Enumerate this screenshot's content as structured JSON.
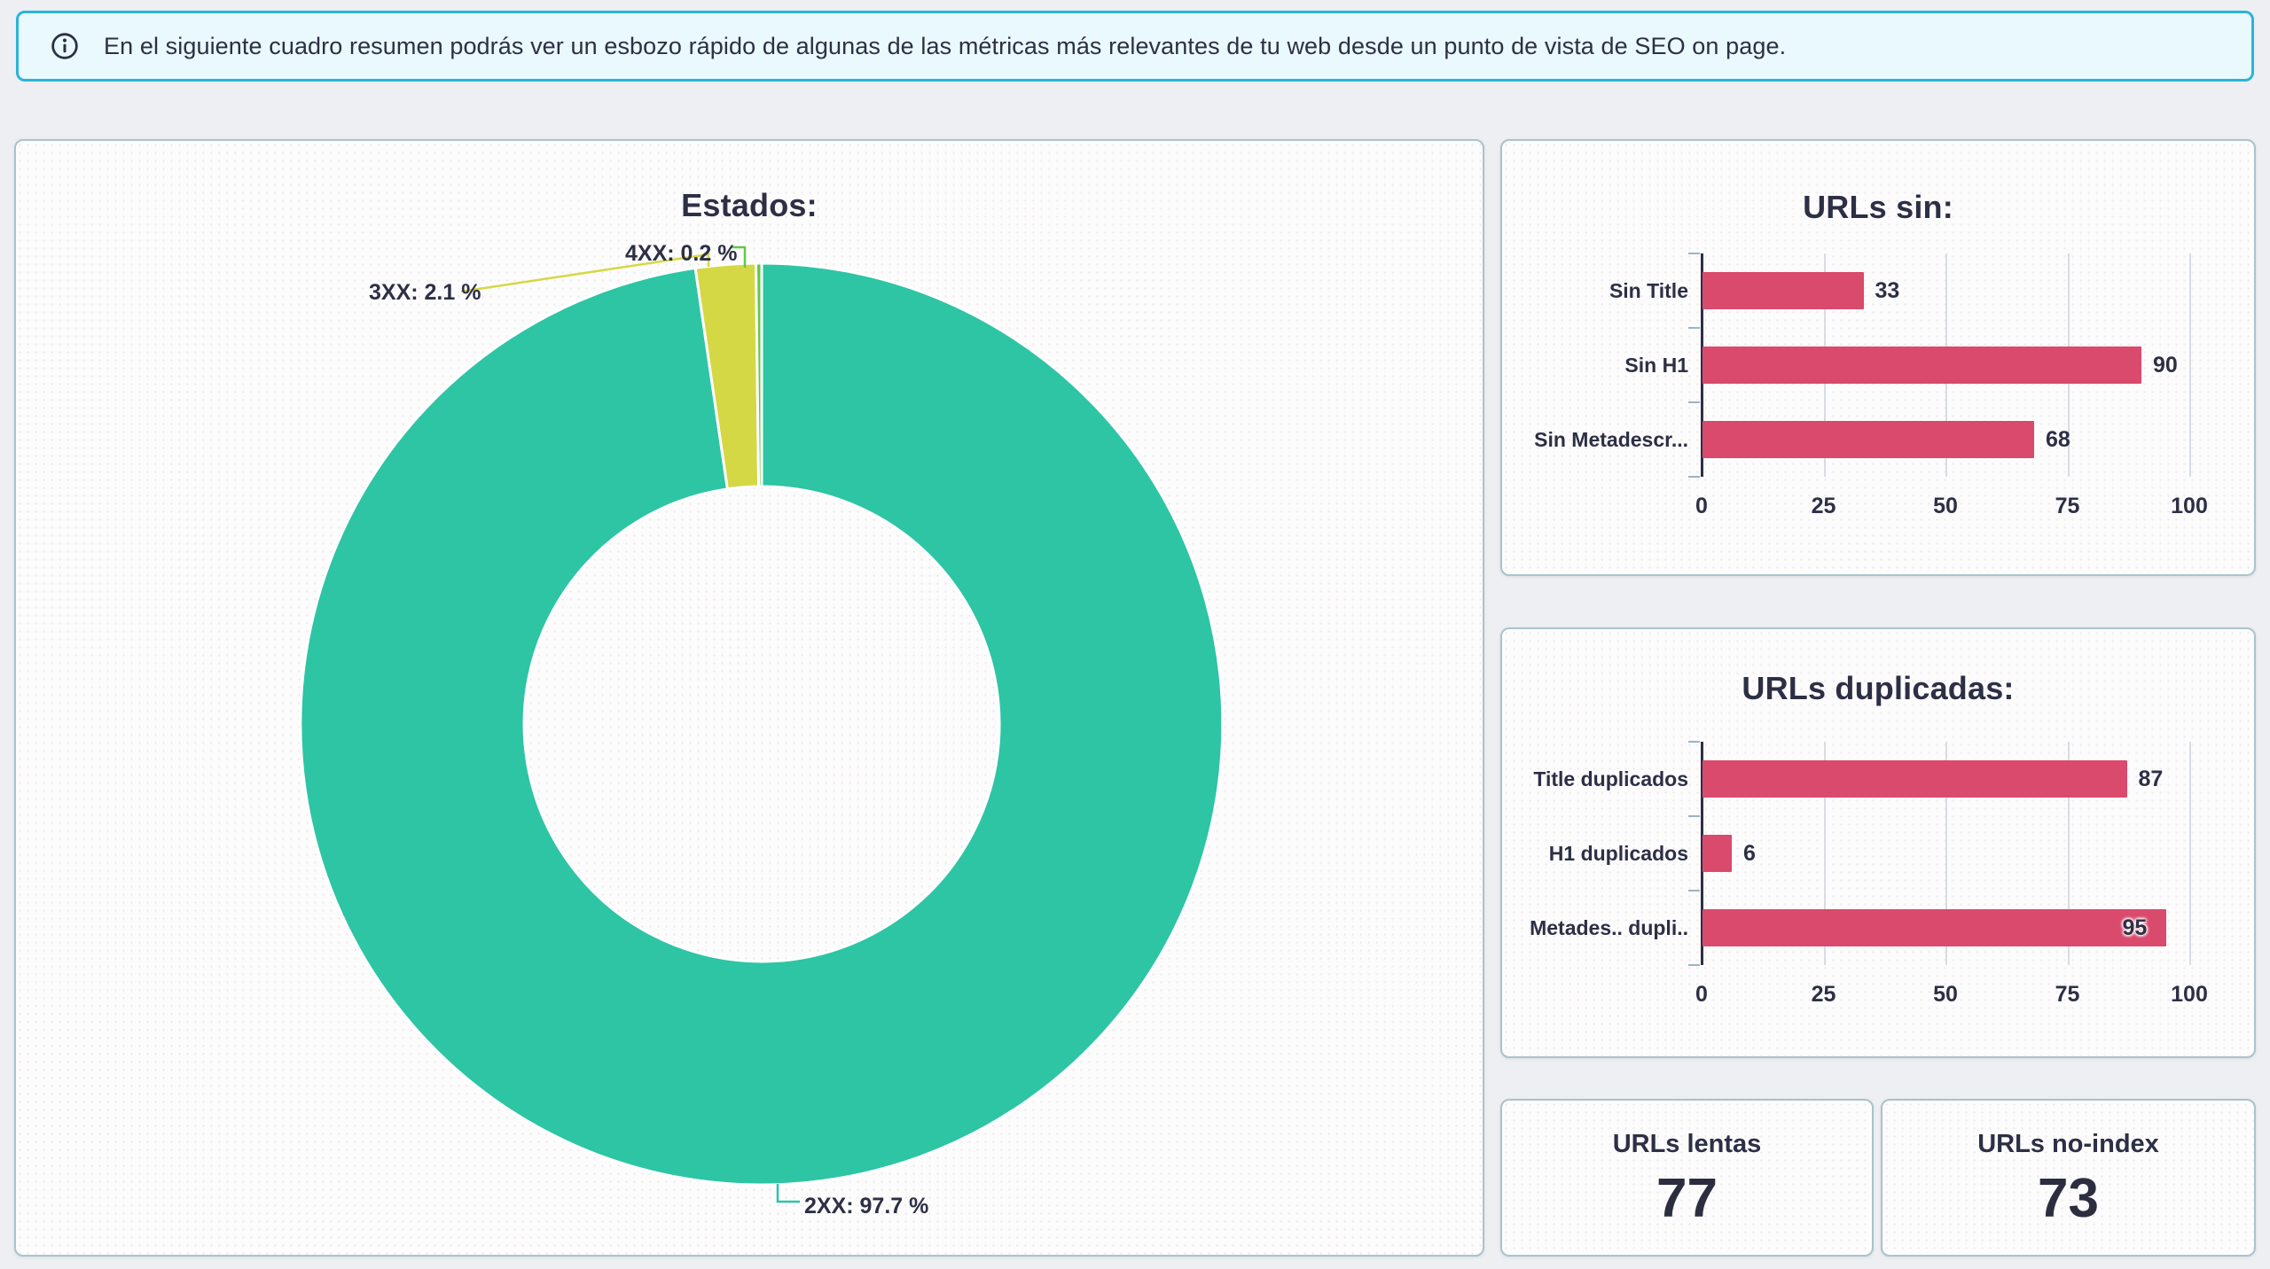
{
  "banner": {
    "icon": "info-icon",
    "text": "En el siguiente cuadro resumen podrás ver un esbozo rápido de algunas de las métricas más relevantes de tu web desde un punto de vista de SEO on page."
  },
  "colors": {
    "accent_teal": "#2dc5a4",
    "accent_yellow": "#d5d845",
    "accent_green": "#62c84a",
    "accent_pink": "#d94a6c",
    "text_navy": "#2d2f45",
    "banner_border": "#2ab4d9",
    "banner_bg": "#eaf9fd",
    "card_border": "#aac3cc",
    "grid_line": "#d9dce1",
    "page_bg": "#edeff2"
  },
  "chart_data": [
    {
      "id": "estados",
      "type": "pie",
      "subtype": "donut",
      "title": "Estados:",
      "labels": [
        "2XX",
        "3XX",
        "4XX"
      ],
      "values_pct": [
        97.7,
        2.1,
        0.2
      ],
      "slice_colors": [
        "#2dc5a4",
        "#d5d845",
        "#62c84a"
      ],
      "annotations": [
        "2XX: 97.7 %",
        "3XX: 2.1 %",
        "4XX: 0.2 %"
      ],
      "legend": "none",
      "label_style": "callout-lines"
    },
    {
      "id": "urls_sin",
      "type": "bar",
      "orientation": "horizontal",
      "title": "URLs sin:",
      "categories": [
        "Sin Title",
        "Sin H1",
        "Sin Metadescr..."
      ],
      "values": [
        33,
        90,
        68
      ],
      "xlim": [
        0,
        100
      ],
      "xticks": [
        0,
        25,
        50,
        75,
        100
      ],
      "bar_color": "#d94a6c",
      "grid": true,
      "legend": "none"
    },
    {
      "id": "urls_duplicadas",
      "type": "bar",
      "orientation": "horizontal",
      "title": "URLs duplicadas:",
      "categories": [
        "Title duplicados",
        "H1 duplicados",
        "Metades.. dupli.."
      ],
      "values": [
        87,
        6,
        95
      ],
      "xlim": [
        0,
        100
      ],
      "xticks": [
        0,
        25,
        50,
        75,
        100
      ],
      "bar_color": "#d94a6c",
      "grid": true,
      "legend": "none"
    }
  ],
  "stat_cards": [
    {
      "label": "URLs lentas",
      "value": "77"
    },
    {
      "label": "URLs no-index",
      "value": "73"
    }
  ]
}
